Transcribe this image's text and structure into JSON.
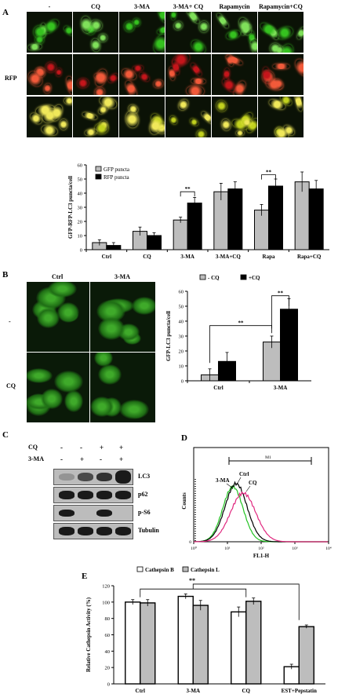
{
  "panel_a": {
    "letter": "A",
    "column_labels": [
      "-",
      "CQ",
      "3-MA",
      "3-MA+ CQ",
      "Rapamycin",
      "Rapamycin+CQ"
    ],
    "row_label": "RFP",
    "chart_data": {
      "type": "bar",
      "categories": [
        "Ctrl",
        "CQ",
        "3-MA",
        "3-MA+CQ",
        "Rapa",
        "Rapa+CQ"
      ],
      "series": [
        {
          "name": "GFP puncta",
          "values": [
            5,
            13,
            21,
            41,
            28,
            48
          ],
          "errors": [
            2,
            3,
            2,
            6,
            4,
            7
          ],
          "color": "#bdbdbd"
        },
        {
          "name": "RFP puncta",
          "values": [
            3,
            10,
            33,
            43,
            45,
            43
          ],
          "errors": [
            2,
            2,
            4,
            5,
            5,
            6
          ],
          "color": "#000000"
        }
      ],
      "ylabel": "GFP-RFP-LC3 puncta/cell",
      "ylim": [
        0,
        60
      ],
      "yticks": [
        "0",
        "10",
        "20",
        "30",
        "40",
        "50",
        "60"
      ],
      "significance": [
        "**",
        "**"
      ],
      "legend": "top-left"
    }
  },
  "panel_b": {
    "letter": "B",
    "column_labels": [
      "Ctrl",
      "3-MA"
    ],
    "row_labels": [
      "-",
      "CQ"
    ],
    "chart_data": {
      "type": "bar",
      "categories": [
        "Ctrl",
        "3-MA"
      ],
      "series": [
        {
          "name": "- CQ",
          "values": [
            4,
            26
          ],
          "errors": [
            4,
            4
          ],
          "color": "#bdbdbd"
        },
        {
          "name": "+CQ",
          "values": [
            13,
            48
          ],
          "errors": [
            6,
            7
          ],
          "color": "#000000"
        }
      ],
      "ylabel": "GFP-LC3 puncta/cell",
      "ylim": [
        0,
        60
      ],
      "yticks": [
        "0",
        "10",
        "20",
        "30",
        "40",
        "50",
        "60"
      ],
      "significance": [
        "**",
        "**"
      ],
      "legend": "top"
    }
  },
  "panel_c": {
    "letter": "C",
    "treatments": [
      {
        "label": "CQ",
        "marks": [
          "-",
          "-",
          "+",
          "+"
        ]
      },
      {
        "label": "3-MA",
        "marks": [
          "-",
          "+",
          "-",
          "+"
        ]
      }
    ],
    "blots": [
      "LC3",
      "p62",
      "p-S6",
      "Tubulin"
    ]
  },
  "panel_d": {
    "letter": "D",
    "ylabel": "Counts",
    "xlabel": "FL1-H",
    "gate_label": "M1",
    "curve_labels": [
      "3-MA",
      "Ctrl",
      "CQ"
    ],
    "xticks": [
      "10⁰",
      "10¹",
      "10²",
      "10³",
      "10⁴"
    ],
    "ytick": "0",
    "colors": {
      "ctrl": "#000000",
      "three_ma": "#22c322",
      "cq": "#e0287f"
    }
  },
  "panel_e": {
    "letter": "E",
    "chart_data": {
      "type": "bar",
      "categories": [
        "Ctrl",
        "3-MA",
        "CQ",
        "EST+Pepstatin"
      ],
      "series": [
        {
          "name": "Cathepsin B",
          "values": [
            100,
            107,
            88,
            21
          ],
          "errors": [
            3,
            3,
            6,
            3
          ],
          "color": "#ffffff"
        },
        {
          "name": "Cathepsin L",
          "values": [
            99,
            96,
            101,
            70
          ],
          "errors": [
            4,
            6,
            4,
            2
          ],
          "color": "#bdbdbd"
        }
      ],
      "ylabel": "Relative Cathepsin Activity (%)",
      "ylim": [
        0,
        120
      ],
      "yticks": [
        "0",
        "20",
        "40",
        "60",
        "80",
        "100",
        "120"
      ],
      "significance": [
        "**"
      ],
      "legend": "top"
    }
  }
}
